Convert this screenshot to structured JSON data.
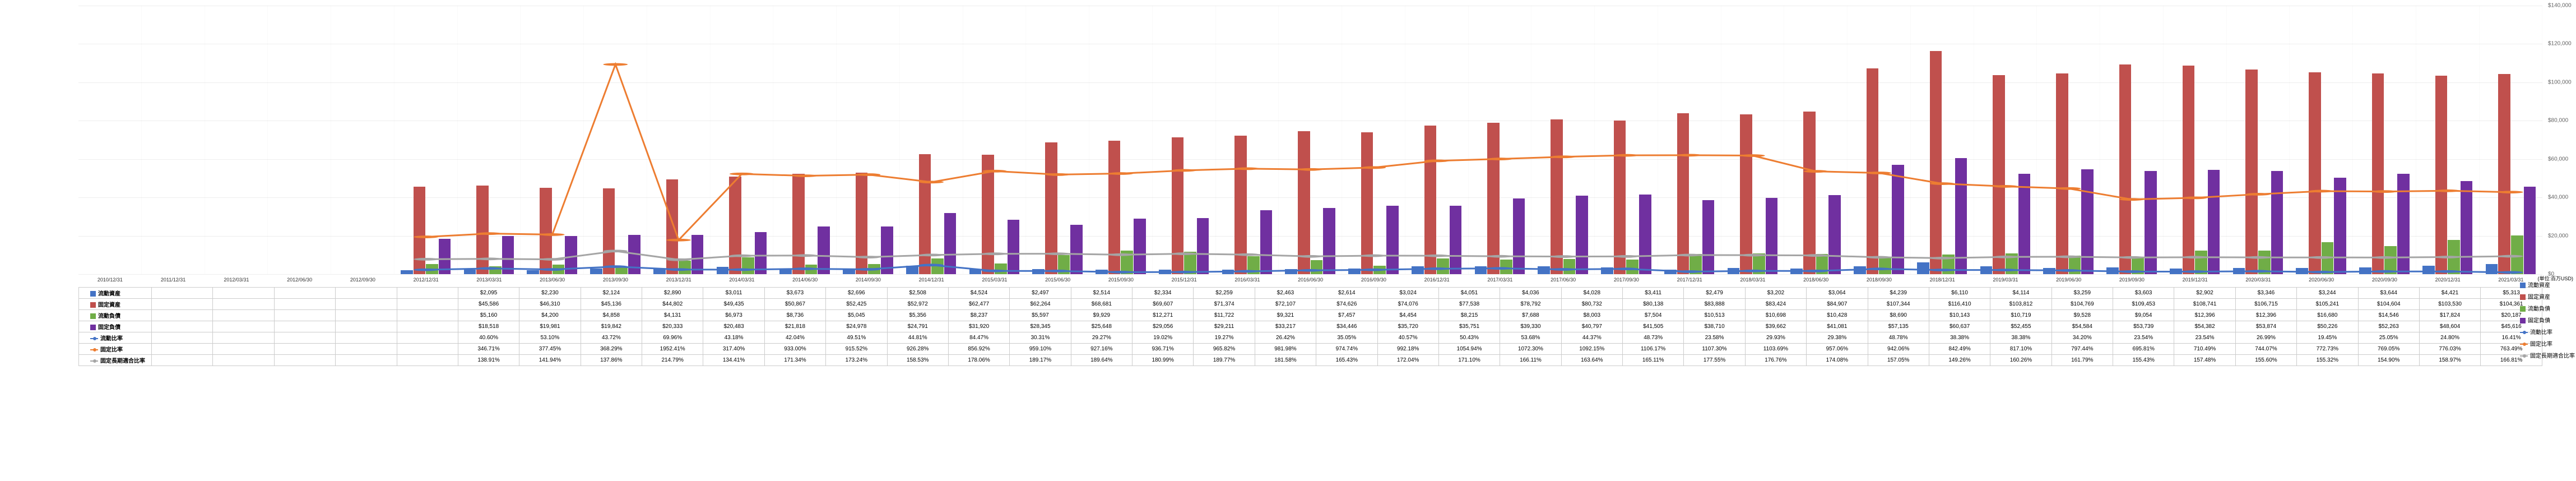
{
  "unit_label": "(単位:百万USD)",
  "periods": [
    "2010/12/31",
    "2011/12/31",
    "2012/03/31",
    "2012/06/30",
    "2012/09/30",
    "2012/12/31",
    "2013/03/31",
    "2013/06/30",
    "2013/09/30",
    "2013/12/31",
    "2014/03/31",
    "2014/06/30",
    "2014/09/30",
    "2014/12/31",
    "2015/03/31",
    "2015/06/30",
    "2015/09/30",
    "2015/12/31",
    "2016/03/31",
    "2016/06/30",
    "2016/09/30",
    "2016/12/31",
    "2017/03/31",
    "2017/06/30",
    "2017/09/30",
    "2017/12/31",
    "2018/03/31",
    "2018/06/30",
    "2018/09/30",
    "2018/12/31",
    "2019/03/31",
    "2019/06/30",
    "2019/09/30",
    "2019/12/31",
    "2020/03/31",
    "2020/06/30",
    "2020/09/30",
    "2020/12/31",
    "2021/03/31"
  ],
  "bar_series": [
    {
      "name": "流動資産",
      "color": "#4473c5",
      "values": [
        null,
        null,
        null,
        null,
        null,
        2095,
        2230,
        2124,
        2890,
        3011,
        3673,
        2696,
        2508,
        4524,
        2497,
        2514,
        2334,
        2259,
        2463,
        2614,
        3024,
        4051,
        4036,
        4028,
        3411,
        2479,
        3202,
        3064,
        4239,
        6110,
        4114,
        3259,
        3603,
        2902,
        3346,
        3244,
        3644,
        4421,
        5313
      ]
    },
    {
      "name": "固定資産",
      "color": "#c0504d",
      "values": [
        null,
        null,
        null,
        null,
        null,
        45586,
        46310,
        45136,
        44802,
        49435,
        50867,
        52425,
        52972,
        62477,
        62264,
        68681,
        69607,
        71374,
        72107,
        74626,
        74076,
        77538,
        78792,
        80732,
        80138,
        83888,
        83424,
        84907,
        107344,
        116410,
        103812,
        104769,
        109453,
        108741,
        106715,
        105241,
        104604,
        103530,
        104361
      ]
    },
    {
      "name": "流動負債",
      "color": "#70ad47",
      "values": [
        null,
        null,
        null,
        null,
        null,
        5160,
        4200,
        4858,
        4131,
        6973,
        8736,
        5045,
        5356,
        8237,
        5597,
        9929,
        12271,
        11722,
        9321,
        7457,
        4454,
        8215,
        7688,
        8003,
        7504,
        10513,
        10698,
        10428,
        8690,
        10143,
        10719,
        9528,
        9054,
        12396,
        12396,
        16680,
        14546,
        17824,
        20187
      ]
    },
    {
      "name": "固定負債",
      "color": "#7030a0",
      "values": [
        null,
        null,
        null,
        null,
        null,
        18518,
        19981,
        19842,
        20333,
        20483,
        21818,
        24978,
        24791,
        31920,
        28345,
        25648,
        29056,
        29211,
        33217,
        34446,
        35720,
        35751,
        39330,
        40797,
        41505,
        38710,
        39662,
        41081,
        57135,
        60637,
        52455,
        54584,
        53739,
        54382,
        53874,
        50226,
        52263,
        48604,
        45616
      ]
    }
  ],
  "line_series": [
    {
      "name": "流動比率",
      "color": "#4473c5",
      "values": [
        null,
        null,
        null,
        null,
        null,
        40.6,
        53.1,
        43.72,
        69.96,
        43.18,
        42.04,
        49.51,
        44.81,
        84.47,
        30.31,
        29.27,
        19.02,
        19.27,
        26.42,
        35.05,
        40.57,
        50.43,
        53.68,
        44.37,
        48.73,
        23.58,
        29.93,
        29.38,
        48.78,
        38.38,
        38.38,
        34.2,
        23.54,
        23.54,
        26.99,
        19.45,
        25.05,
        24.8,
        16.41
      ]
    },
    {
      "name": "固定比率",
      "color": "#ed7d31",
      "values": [
        null,
        null,
        null,
        null,
        null,
        346.71,
        377.45,
        368.29,
        1952.41,
        317.4,
        933.0,
        915.52,
        926.28,
        856.92,
        959.1,
        927.16,
        936.71,
        965.82,
        981.98,
        974.74,
        992.18,
        1054.94,
        1072.3,
        1092.15,
        1106.17,
        1107.3,
        1103.69,
        957.06,
        942.06,
        842.49,
        817.1,
        797.44,
        695.81,
        710.49,
        744.07,
        772.73,
        769.05,
        776.03,
        763.49
      ]
    },
    {
      "name": "固定長期適合比率",
      "color": "#a5a5a5",
      "values": [
        null,
        null,
        null,
        null,
        null,
        138.91,
        141.94,
        137.86,
        214.79,
        134.41,
        171.34,
        173.24,
        158.53,
        178.06,
        189.17,
        189.64,
        180.99,
        189.77,
        181.58,
        165.43,
        172.04,
        171.1,
        166.11,
        163.64,
        165.11,
        177.55,
        176.76,
        174.08,
        157.05,
        149.26,
        160.26,
        161.79,
        155.43,
        157.48,
        155.6,
        155.32,
        154.9,
        158.97,
        166.81
      ]
    }
  ],
  "left_axis": {
    "max": 140000,
    "step": 20000,
    "format": "$"
  },
  "right_axis": {
    "max": 2500,
    "step": 500,
    "format": "%"
  },
  "row_labels": [
    "流動資産",
    "固定資産",
    "流動負債",
    "固定負債",
    "流動比率",
    "固定比率",
    "固定長期適合比率"
  ],
  "legend_right": [
    "流動資産",
    "固定資産",
    "流動負債",
    "固定負債",
    "流動比率",
    "固定比率",
    "固定長期適合比率"
  ],
  "colors": {
    "流動資産": "#4473c5",
    "固定資産": "#c0504d",
    "流動負債": "#70ad47",
    "固定負債": "#7030a0",
    "流動比率": "#4473c5",
    "固定比率": "#ed7d31",
    "固定長期適合比率": "#a5a5a5"
  }
}
